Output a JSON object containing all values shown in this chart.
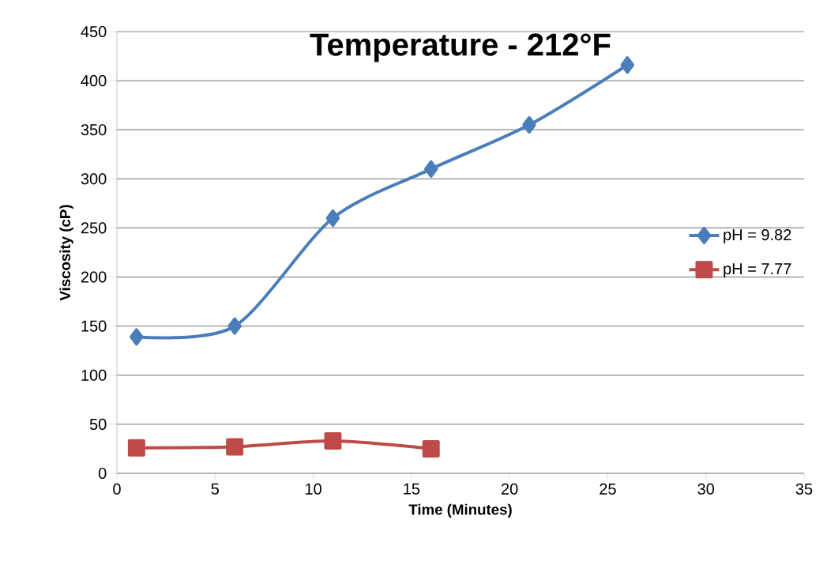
{
  "chart_data": {
    "type": "line",
    "title": "Temperature -  212°F",
    "xlabel": "Time (Minutes)",
    "ylabel": "Viscosity (cP)",
    "xlim": [
      0,
      35
    ],
    "xticks": [
      0,
      5,
      10,
      15,
      20,
      25,
      30,
      35
    ],
    "ylim": [
      0,
      450
    ],
    "yticks": [
      0,
      50,
      100,
      150,
      200,
      250,
      300,
      350,
      400,
      450
    ],
    "grid": "y",
    "legend": "right",
    "series": [
      {
        "name": "pH = 9.82",
        "color": "#4a7ebb",
        "marker": "diamond",
        "x": [
          1,
          6,
          11,
          16,
          21,
          26
        ],
        "values": [
          139,
          150,
          260,
          310,
          355,
          416
        ]
      },
      {
        "name": "pH = 7.77",
        "color": "#be4b48",
        "marker": "square",
        "x": [
          1,
          6,
          11,
          16
        ],
        "values": [
          26,
          27,
          33,
          25
        ]
      }
    ]
  }
}
